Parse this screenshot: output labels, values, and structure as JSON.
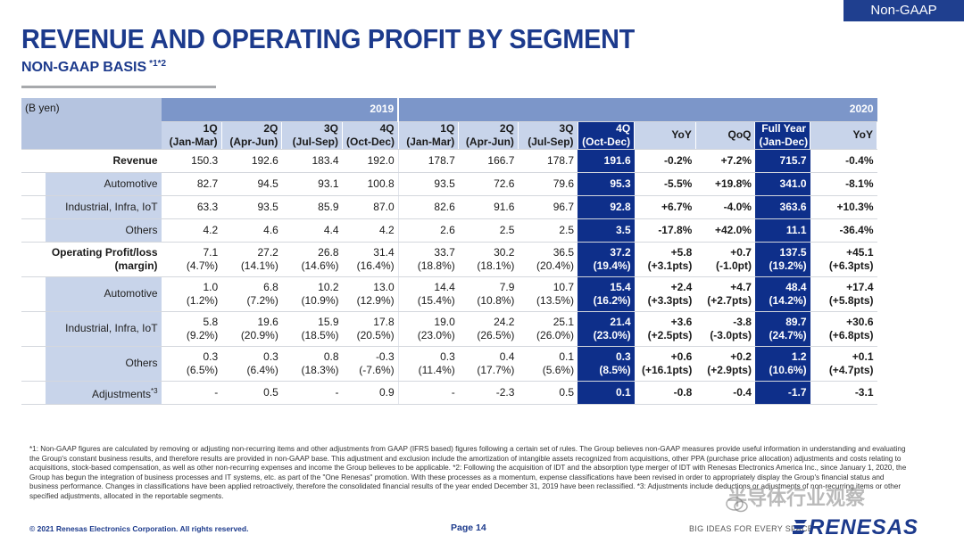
{
  "tag": "Non-GAAP",
  "title": "REVENUE AND OPERATING PROFIT BY SEGMENT",
  "subtitle": "NON-GAAP BASIS",
  "subtitle_note": "*1*2",
  "table": {
    "unit": "(B yen)",
    "year_2019": "2019",
    "year_2020": "2020",
    "col_headers": [
      [
        "1Q",
        "(Jan-Mar)"
      ],
      [
        "2Q",
        "(Apr-Jun)"
      ],
      [
        "3Q",
        "(Jul-Sep)"
      ],
      [
        "4Q",
        "(Oct-Dec)"
      ],
      [
        "1Q",
        "(Jan-Mar)"
      ],
      [
        "2Q",
        "(Apr-Jun)"
      ],
      [
        "3Q",
        "(Jul-Sep)"
      ],
      [
        "4Q",
        "(Oct-Dec)"
      ],
      [
        "YoY",
        ""
      ],
      [
        "QoQ",
        ""
      ],
      [
        "Full Year",
        "(Jan-Dec)"
      ],
      [
        "YoY",
        ""
      ]
    ],
    "rows": [
      {
        "label": "Revenue",
        "type": "main",
        "cells": [
          [
            "150.3"
          ],
          [
            "192.6"
          ],
          [
            "183.4"
          ],
          [
            "192.0"
          ],
          [
            "178.7"
          ],
          [
            "166.7"
          ],
          [
            "178.7"
          ],
          [
            "191.6"
          ],
          [
            "-0.2%"
          ],
          [
            "+7.2%"
          ],
          [
            "715.7"
          ],
          [
            "-0.4%"
          ]
        ]
      },
      {
        "label": "Automotive",
        "type": "sub",
        "cells": [
          [
            "82.7"
          ],
          [
            "94.5"
          ],
          [
            "93.1"
          ],
          [
            "100.8"
          ],
          [
            "93.5"
          ],
          [
            "72.6"
          ],
          [
            "79.6"
          ],
          [
            "95.3"
          ],
          [
            "-5.5%"
          ],
          [
            "+19.8%"
          ],
          [
            "341.0"
          ],
          [
            "-8.1%"
          ]
        ]
      },
      {
        "label": "Industrial, Infra, IoT",
        "type": "sub",
        "cells": [
          [
            "63.3"
          ],
          [
            "93.5"
          ],
          [
            "85.9"
          ],
          [
            "87.0"
          ],
          [
            "82.6"
          ],
          [
            "91.6"
          ],
          [
            "96.7"
          ],
          [
            "92.8"
          ],
          [
            "+6.7%"
          ],
          [
            "-4.0%"
          ],
          [
            "363.6"
          ],
          [
            "+10.3%"
          ]
        ]
      },
      {
        "label": "Others",
        "type": "sub",
        "cells": [
          [
            "4.2"
          ],
          [
            "4.6"
          ],
          [
            "4.4"
          ],
          [
            "4.2"
          ],
          [
            "2.6"
          ],
          [
            "2.5"
          ],
          [
            "2.5"
          ],
          [
            "3.5"
          ],
          [
            "-17.8%"
          ],
          [
            "+42.0%"
          ],
          [
            "11.1"
          ],
          [
            "-36.4%"
          ]
        ]
      },
      {
        "label": "Operating Profit/loss",
        "label2": "(margin)",
        "type": "main2",
        "cells": [
          [
            "7.1",
            "(4.7%)"
          ],
          [
            "27.2",
            "(14.1%)"
          ],
          [
            "26.8",
            "(14.6%)"
          ],
          [
            "31.4",
            "(16.4%)"
          ],
          [
            "33.7",
            "(18.8%)"
          ],
          [
            "30.2",
            "(18.1%)"
          ],
          [
            "36.5",
            "(20.4%)"
          ],
          [
            "37.2",
            "(19.4%)"
          ],
          [
            "+5.8",
            "(+3.1pts)"
          ],
          [
            "+0.7",
            "(-1.0pt)"
          ],
          [
            "137.5",
            "(19.2%)"
          ],
          [
            "+45.1",
            "(+6.3pts)"
          ]
        ]
      },
      {
        "label": "Automotive",
        "type": "sub2",
        "cells": [
          [
            "1.0",
            "(1.2%)"
          ],
          [
            "6.8",
            "(7.2%)"
          ],
          [
            "10.2",
            "(10.9%)"
          ],
          [
            "13.0",
            "(12.9%)"
          ],
          [
            "14.4",
            "(15.4%)"
          ],
          [
            "7.9",
            "(10.8%)"
          ],
          [
            "10.7",
            "(13.5%)"
          ],
          [
            "15.4",
            "(16.2%)"
          ],
          [
            "+2.4",
            "(+3.3pts)"
          ],
          [
            "+4.7",
            "(+2.7pts)"
          ],
          [
            "48.4",
            "(14.2%)"
          ],
          [
            "+17.4",
            "(+5.8pts)"
          ]
        ]
      },
      {
        "label": "Industrial, Infra, IoT",
        "type": "sub2",
        "cells": [
          [
            "5.8",
            "(9.2%)"
          ],
          [
            "19.6",
            "(20.9%)"
          ],
          [
            "15.9",
            "(18.5%)"
          ],
          [
            "17.8",
            "(20.5%)"
          ],
          [
            "19.0",
            "(23.0%)"
          ],
          [
            "24.2",
            "(26.5%)"
          ],
          [
            "25.1",
            "(26.0%)"
          ],
          [
            "21.4",
            "(23.0%)"
          ],
          [
            "+3.6",
            "(+2.5pts)"
          ],
          [
            "-3.8",
            "(-3.0pts)"
          ],
          [
            "89.7",
            "(24.7%)"
          ],
          [
            "+30.6",
            "(+6.8pts)"
          ]
        ]
      },
      {
        "label": "Others",
        "type": "sub2",
        "cells": [
          [
            "0.3",
            "(6.5%)"
          ],
          [
            "0.3",
            "(6.4%)"
          ],
          [
            "0.8",
            "(18.3%)"
          ],
          [
            "-0.3",
            "(-7.6%)"
          ],
          [
            "0.3",
            "(11.4%)"
          ],
          [
            "0.4",
            "(17.7%)"
          ],
          [
            "0.1",
            "(5.6%)"
          ],
          [
            "0.3",
            "(8.5%)"
          ],
          [
            "+0.6",
            "(+16.1pts)"
          ],
          [
            "+0.2",
            "(+2.9pts)"
          ],
          [
            "1.2",
            "(10.6%)"
          ],
          [
            "+0.1",
            "(+4.7pts)"
          ]
        ]
      },
      {
        "label": "Adjustments",
        "label_note": "*3",
        "type": "sub",
        "cells": [
          [
            "-"
          ],
          [
            "0.5"
          ],
          [
            "-"
          ],
          [
            "0.9"
          ],
          [
            "-"
          ],
          [
            "-2.3"
          ],
          [
            "0.5"
          ],
          [
            "0.1"
          ],
          [
            "-0.8"
          ],
          [
            "-0.4"
          ],
          [
            "-1.7"
          ],
          [
            "-3.1"
          ]
        ]
      }
    ]
  },
  "footnote": "*1: Non-GAAP figures are calculated by removing or adjusting non-recurring items and other adjustments from GAAP (IFRS based) figures following a certain set of rules. The Group believes non-GAAP measures provide useful information in understanding and evaluating the Group's constant business results, and therefore results are provided in non-GAAP base. This adjustment and exclusion include the amortization of intangible assets recognized from acquisitions, other PPA (purchase price allocation) adjustments and costs relating to acquisitions, stock-based compensation, as well as other non-recurring expenses and income the Group believes to be applicable. *2: Following the acquisition of IDT and the absorption type merger of IDT with Renesas Electronics America Inc., since January 1, 2020, the Group has begun the integration of business processes and IT systems, etc. as part of the \"One Renesas\" promotion. With these processes as a momentum, expense classifications have been revised in order to appropriately display the Group's financial status and business performance. Changes in classifications have been applied retroactively, therefore the consolidated financial results of the year ended December 31, 2019 have been reclassified. *3: Adjustments include deductions or adjustments of non-recurring items or other specified adjustments, allocated in the reportable segments.",
  "footer": {
    "copyright": "© 2021 Renesas Electronics Corporation. All rights reserved.",
    "page": "Page 14",
    "tagline": "BIG IDEAS FOR EVERY SPACE",
    "logo": "RENESAS"
  },
  "watermark": "半导体行业观察"
}
